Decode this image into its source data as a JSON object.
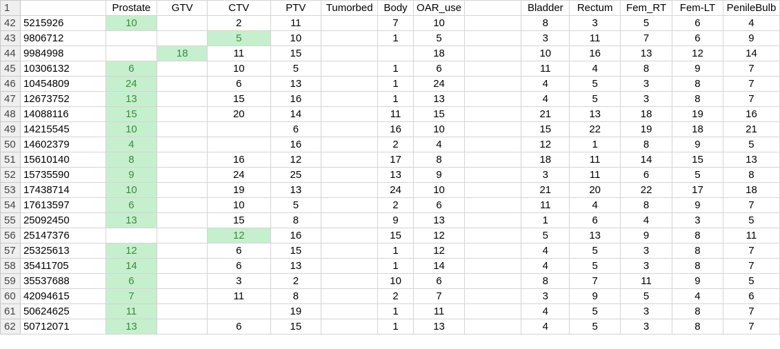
{
  "sheet": {
    "header_row_number": "1",
    "headers": [
      "",
      "Prostate",
      "GTV",
      "CTV",
      "PTV",
      "Tumorbed",
      "Body",
      "OAR_use",
      "",
      "Bladder",
      "Rectum",
      "Fem_RT",
      "Fem-LT",
      "PenileBulb"
    ],
    "highlight_color": "#c6efce",
    "highlight_text_color": "#3a8a3a",
    "rows": [
      {
        "num": "42",
        "cells": [
          "5215926",
          "10",
          "",
          "2",
          "11",
          "",
          "7",
          "10",
          "",
          "8",
          "3",
          "5",
          "6",
          "4"
        ],
        "hl": [
          1
        ]
      },
      {
        "num": "43",
        "cells": [
          "9806712",
          "",
          "",
          "5",
          "10",
          "",
          "1",
          "5",
          "",
          "3",
          "11",
          "7",
          "6",
          "9"
        ],
        "hl": [
          3
        ]
      },
      {
        "num": "44",
        "cells": [
          "9984998",
          "",
          "18",
          "11",
          "15",
          "",
          "",
          "18",
          "",
          "10",
          "16",
          "13",
          "12",
          "14"
        ],
        "hl": [
          2
        ]
      },
      {
        "num": "45",
        "cells": [
          "10306132",
          "6",
          "",
          "10",
          "5",
          "",
          "1",
          "6",
          "",
          "11",
          "4",
          "8",
          "9",
          "7"
        ],
        "hl": [
          1
        ]
      },
      {
        "num": "46",
        "cells": [
          "10454809",
          "24",
          "",
          "6",
          "13",
          "",
          "1",
          "24",
          "",
          "4",
          "5",
          "3",
          "8",
          "7"
        ],
        "hl": [
          1
        ]
      },
      {
        "num": "47",
        "cells": [
          "12673752",
          "13",
          "",
          "15",
          "16",
          "",
          "1",
          "13",
          "",
          "4",
          "5",
          "3",
          "8",
          "7"
        ],
        "hl": [
          1
        ]
      },
      {
        "num": "48",
        "cells": [
          "14088116",
          "15",
          "",
          "20",
          "14",
          "",
          "11",
          "15",
          "",
          "21",
          "13",
          "18",
          "19",
          "16"
        ],
        "hl": [
          1
        ]
      },
      {
        "num": "49",
        "cells": [
          "14215545",
          "10",
          "",
          "",
          "6",
          "",
          "16",
          "10",
          "",
          "15",
          "22",
          "19",
          "18",
          "21"
        ],
        "hl": [
          1
        ]
      },
      {
        "num": "50",
        "cells": [
          "14602379",
          "4",
          "",
          "",
          "16",
          "",
          "2",
          "4",
          "",
          "12",
          "1",
          "8",
          "9",
          "5"
        ],
        "hl": [
          1
        ]
      },
      {
        "num": "51",
        "cells": [
          "15610140",
          "8",
          "",
          "16",
          "12",
          "",
          "17",
          "8",
          "",
          "18",
          "11",
          "14",
          "15",
          "13"
        ],
        "hl": [
          1
        ]
      },
      {
        "num": "52",
        "cells": [
          "15735590",
          "9",
          "",
          "24",
          "25",
          "",
          "13",
          "9",
          "",
          "3",
          "11",
          "6",
          "5",
          "8"
        ],
        "hl": [
          1
        ]
      },
      {
        "num": "53",
        "cells": [
          "17438714",
          "10",
          "",
          "19",
          "13",
          "",
          "24",
          "10",
          "",
          "21",
          "20",
          "22",
          "17",
          "18"
        ],
        "hl": [
          1
        ]
      },
      {
        "num": "54",
        "cells": [
          "17613597",
          "6",
          "",
          "10",
          "5",
          "",
          "2",
          "6",
          "",
          "11",
          "4",
          "8",
          "9",
          "7"
        ],
        "hl": [
          1
        ]
      },
      {
        "num": "55",
        "cells": [
          "25092450",
          "13",
          "",
          "15",
          "8",
          "",
          "9",
          "13",
          "",
          "1",
          "6",
          "4",
          "3",
          "5"
        ],
        "hl": [
          1
        ]
      },
      {
        "num": "56",
        "cells": [
          "25147376",
          "",
          "",
          "12",
          "16",
          "",
          "15",
          "12",
          "",
          "5",
          "13",
          "9",
          "8",
          "11"
        ],
        "hl": [
          3
        ]
      },
      {
        "num": "57",
        "cells": [
          "25325613",
          "12",
          "",
          "6",
          "15",
          "",
          "1",
          "12",
          "",
          "4",
          "5",
          "3",
          "8",
          "7"
        ],
        "hl": [
          1
        ]
      },
      {
        "num": "58",
        "cells": [
          "35411705",
          "14",
          "",
          "6",
          "13",
          "",
          "1",
          "14",
          "",
          "4",
          "5",
          "3",
          "8",
          "7"
        ],
        "hl": [
          1
        ]
      },
      {
        "num": "59",
        "cells": [
          "35537688",
          "6",
          "",
          "3",
          "2",
          "",
          "10",
          "6",
          "",
          "8",
          "7",
          "11",
          "9",
          "5"
        ],
        "hl": [
          1
        ]
      },
      {
        "num": "60",
        "cells": [
          "42094615",
          "7",
          "",
          "11",
          "8",
          "",
          "2",
          "7",
          "",
          "3",
          "9",
          "5",
          "4",
          "6"
        ],
        "hl": [
          1
        ]
      },
      {
        "num": "61",
        "cells": [
          "50624625",
          "11",
          "",
          "",
          "19",
          "",
          "1",
          "11",
          "",
          "4",
          "5",
          "3",
          "8",
          "7"
        ],
        "hl": [
          1
        ]
      },
      {
        "num": "62",
        "cells": [
          "50712071",
          "13",
          "",
          "6",
          "15",
          "",
          "1",
          "13",
          "",
          "4",
          "5",
          "3",
          "8",
          "7"
        ],
        "hl": [
          1
        ]
      }
    ]
  }
}
